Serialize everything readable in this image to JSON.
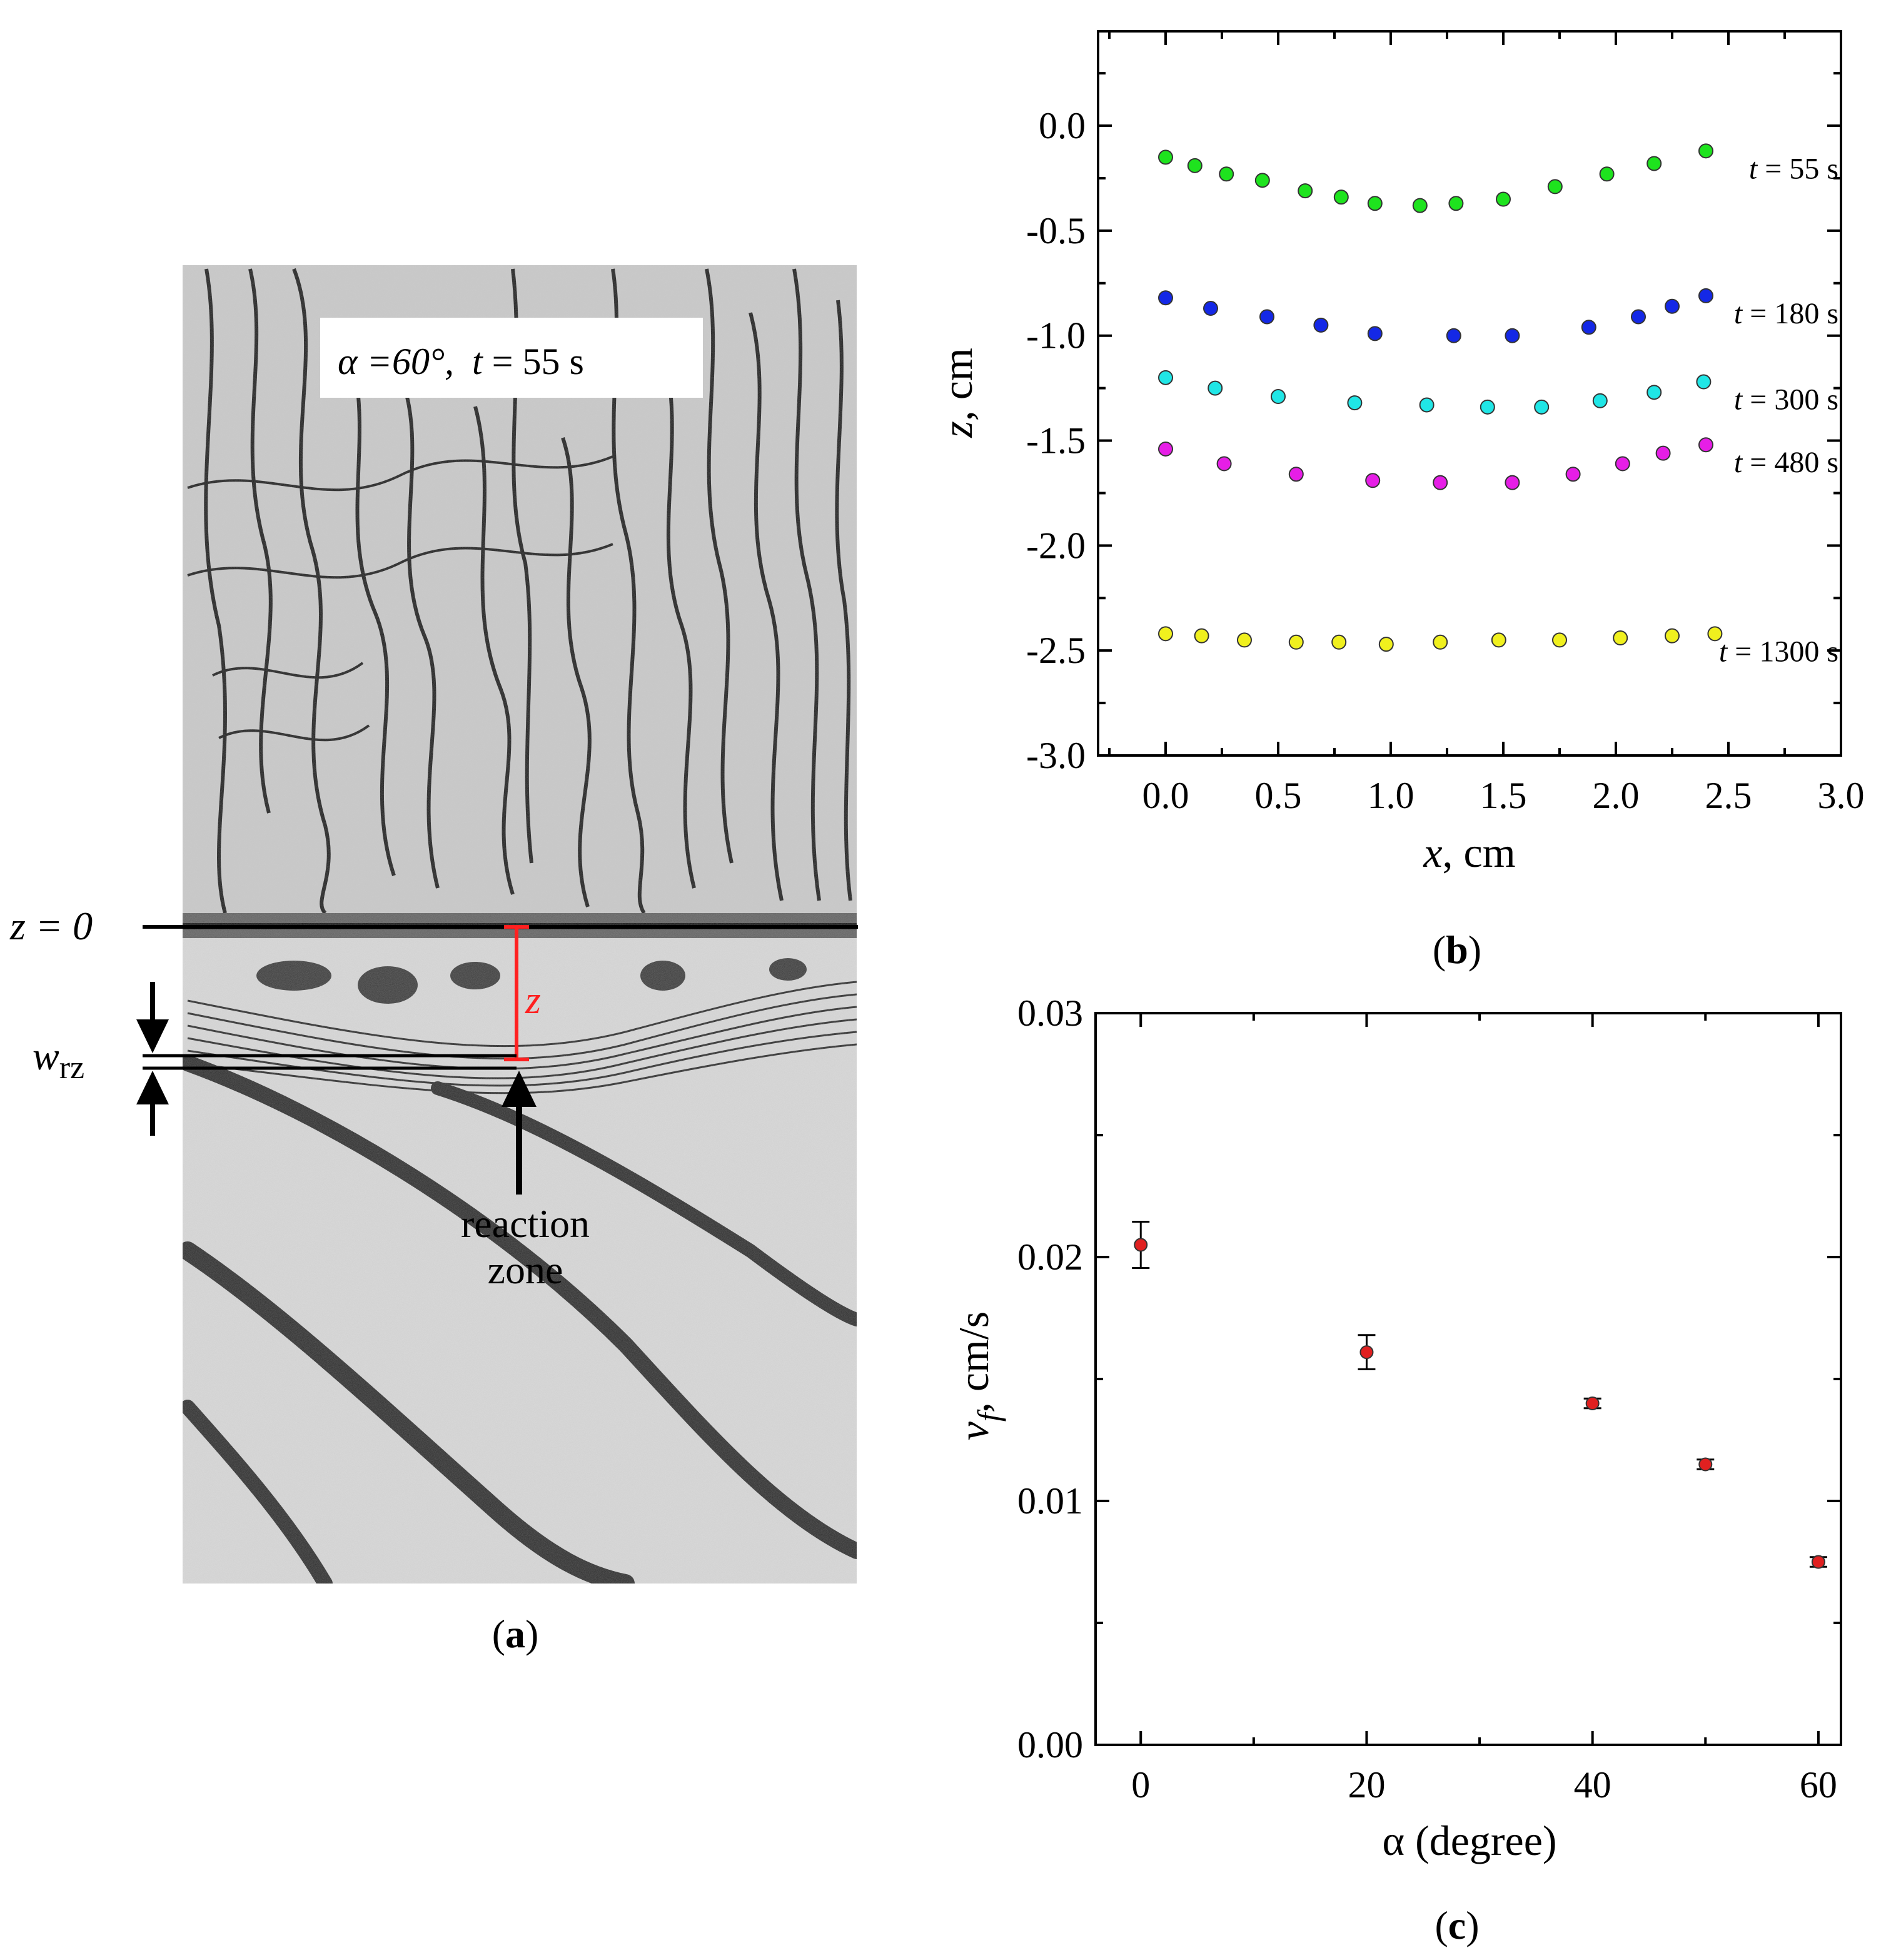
{
  "panel_a": {
    "panel_label": "(a)",
    "label_prefix": "(",
    "label_letter": "a",
    "label_suffix": ")",
    "inset_alpha": "α =60°,",
    "inset_t": "t",
    "inset_rest": " = 55 s",
    "z0_label": "z = 0",
    "z_symbol": "z",
    "wrz_w": "w",
    "wrz_sub": "rz",
    "reaction_line1": "reaction",
    "reaction_line2": "zone",
    "colors": {
      "z_marker": "#ff2020"
    }
  },
  "chart_data": [
    {
      "id": "b",
      "type": "scatter",
      "panel_label": "(b)",
      "label_letter": "b",
      "xlabel_var": "x",
      "xlabel_unit": ", cm",
      "ylabel_var": "z",
      "ylabel_unit": ", cm",
      "xlim": [
        -0.3,
        3.0
      ],
      "ylim": [
        -3.0,
        0.45
      ],
      "xticks": [
        0.0,
        0.5,
        1.0,
        1.5,
        2.0,
        2.5,
        3.0
      ],
      "xtick_labels": [
        "0.0",
        "0.5",
        "1.0",
        "1.5",
        "2.0",
        "2.5",
        "3.0"
      ],
      "yticks": [
        0.0,
        -0.5,
        -1.0,
        -1.5,
        -2.0,
        -2.5,
        -3.0
      ],
      "ytick_labels": [
        "0.0",
        "-0.5",
        "-1.0",
        "-1.5",
        "-2.0",
        "-2.5",
        "-3.0"
      ],
      "series": [
        {
          "name": "t = 55 s",
          "label_t": "t",
          "label_rest": " = 55 s",
          "color": "#1ee31e",
          "points": [
            [
              0.0,
              -0.15
            ],
            [
              0.13,
              -0.19
            ],
            [
              0.27,
              -0.23
            ],
            [
              0.43,
              -0.26
            ],
            [
              0.62,
              -0.31
            ],
            [
              0.78,
              -0.34
            ],
            [
              0.93,
              -0.37
            ],
            [
              1.13,
              -0.38
            ],
            [
              1.29,
              -0.37
            ],
            [
              1.5,
              -0.35
            ],
            [
              1.73,
              -0.29
            ],
            [
              1.96,
              -0.23
            ],
            [
              2.17,
              -0.18
            ],
            [
              2.4,
              -0.12
            ]
          ]
        },
        {
          "name": "t = 180 s",
          "label_t": "t",
          "label_rest": " = 180 s",
          "color": "#1428e6",
          "points": [
            [
              0.0,
              -0.82
            ],
            [
              0.2,
              -0.87
            ],
            [
              0.45,
              -0.91
            ],
            [
              0.69,
              -0.95
            ],
            [
              0.93,
              -0.99
            ],
            [
              1.28,
              -1.0
            ],
            [
              1.54,
              -1.0
            ],
            [
              1.88,
              -0.96
            ],
            [
              2.1,
              -0.91
            ],
            [
              2.25,
              -0.86
            ],
            [
              2.4,
              -0.81
            ]
          ]
        },
        {
          "name": "t = 300 s",
          "label_t": "t",
          "label_rest": " = 300 s",
          "color": "#20e6e6",
          "points": [
            [
              0.0,
              -1.2
            ],
            [
              0.22,
              -1.25
            ],
            [
              0.5,
              -1.29
            ],
            [
              0.84,
              -1.32
            ],
            [
              1.16,
              -1.33
            ],
            [
              1.43,
              -1.34
            ],
            [
              1.67,
              -1.34
            ],
            [
              1.93,
              -1.31
            ],
            [
              2.17,
              -1.27
            ],
            [
              2.39,
              -1.22
            ]
          ]
        },
        {
          "name": "t = 480 s",
          "label_t": "t",
          "label_rest": " = 480 s",
          "color": "#e61ee6",
          "points": [
            [
              0.0,
              -1.54
            ],
            [
              0.26,
              -1.61
            ],
            [
              0.58,
              -1.66
            ],
            [
              0.92,
              -1.69
            ],
            [
              1.22,
              -1.7
            ],
            [
              1.54,
              -1.7
            ],
            [
              1.81,
              -1.66
            ],
            [
              2.03,
              -1.61
            ],
            [
              2.21,
              -1.56
            ],
            [
              2.4,
              -1.52
            ]
          ]
        },
        {
          "name": "t = 1300 s",
          "label_t": "t",
          "label_rest": " = 1300 s",
          "color": "#f0f01e",
          "points": [
            [
              0.0,
              -2.42
            ],
            [
              0.16,
              -2.43
            ],
            [
              0.35,
              -2.45
            ],
            [
              0.58,
              -2.46
            ],
            [
              0.77,
              -2.46
            ],
            [
              0.98,
              -2.47
            ],
            [
              1.22,
              -2.46
            ],
            [
              1.48,
              -2.45
            ],
            [
              1.75,
              -2.45
            ],
            [
              2.02,
              -2.44
            ],
            [
              2.25,
              -2.43
            ],
            [
              2.44,
              -2.42
            ]
          ]
        }
      ]
    },
    {
      "id": "c",
      "type": "scatter",
      "panel_label": "(c)",
      "label_letter": "c",
      "xlabel": "α (degree)",
      "ylabel_var": "v",
      "ylabel_sub": "f",
      "ylabel_unit": ", cm/s",
      "xlim": [
        -4,
        62
      ],
      "ylim": [
        0.0,
        0.03
      ],
      "xticks": [
        0,
        20,
        40,
        60
      ],
      "xtick_labels": [
        "0",
        "20",
        "40",
        "60"
      ],
      "yticks": [
        0.0,
        0.01,
        0.02,
        0.03
      ],
      "ytick_labels": [
        "0.00",
        "0.01",
        "0.02",
        "0.03"
      ],
      "series": [
        {
          "name": "v_f",
          "color": "#e02020",
          "points": [
            [
              0,
              0.0205
            ],
            [
              20,
              0.0161
            ],
            [
              40,
              0.014
            ],
            [
              50,
              0.0115
            ],
            [
              60,
              0.0075
            ]
          ],
          "errors": [
            0.00095,
            0.0007,
            0.0002,
            0.0002,
            0.0002
          ]
        }
      ]
    }
  ]
}
